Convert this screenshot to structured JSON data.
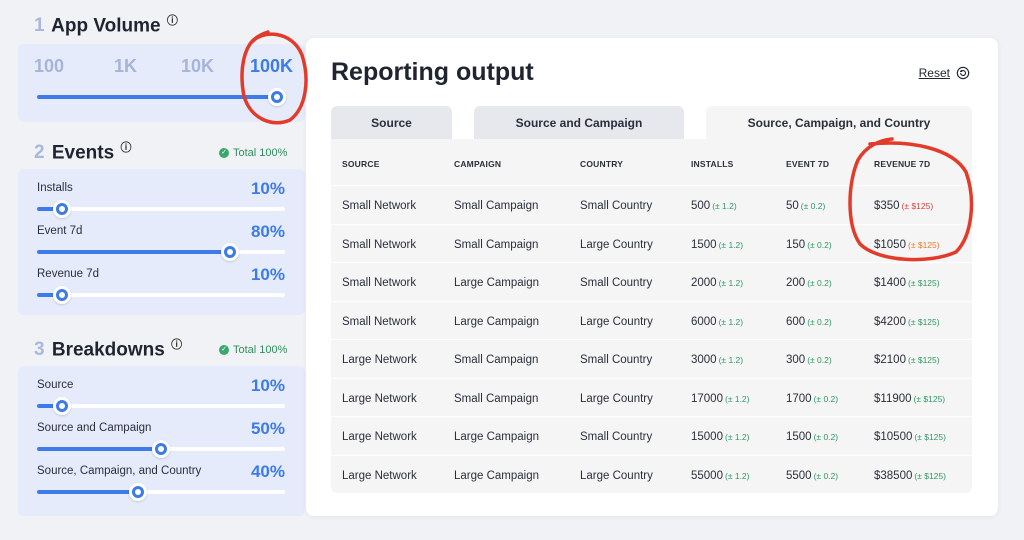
{
  "app_volume": {
    "number": "1",
    "title": "App Volume",
    "info": "ⓘ",
    "options": [
      "100",
      "1K",
      "10K",
      "100K"
    ],
    "selected": "100K"
  },
  "events": {
    "number": "2",
    "title": "Events",
    "info": "ⓘ",
    "total": "Total 100%",
    "rows": [
      {
        "label": "Installs",
        "pct": "10%",
        "value": 0.1
      },
      {
        "label": "Event 7d",
        "pct": "80%",
        "value": 0.8
      },
      {
        "label": "Revenue 7d",
        "pct": "10%",
        "value": 0.1
      }
    ]
  },
  "breakdowns": {
    "number": "3",
    "title": "Breakdowns",
    "info": "ⓘ",
    "total": "Total 100%",
    "rows": [
      {
        "label": "Source",
        "pct": "10%",
        "value": 0.1
      },
      {
        "label": "Source and Campaign",
        "pct": "50%",
        "value": 0.5
      },
      {
        "label": "Source, Campaign, and Country",
        "pct": "40%",
        "value": 0.4
      }
    ]
  },
  "reporting": {
    "title": "Reporting output",
    "reset_label": "Reset",
    "tabs": [
      "Source",
      "Source and Campaign",
      "Source, Campaign, and Country"
    ],
    "active_tab": "Source, Campaign, and Country",
    "columns": [
      "SOURCE",
      "CAMPAIGN",
      "COUNTRY",
      "INSTALLS",
      "EVENT 7D",
      "REVENUE 7D"
    ],
    "rows": [
      {
        "source": "Small Network",
        "campaign": "Small Campaign",
        "country": "Small Country",
        "installs": "500",
        "installs_err": "(± 1.2)",
        "event": "50",
        "event_err": "(± 0.2)",
        "revenue": "$350",
        "revenue_err": "(± $125)",
        "revenue_err_color": "red"
      },
      {
        "source": "Small Network",
        "campaign": "Small Campaign",
        "country": "Large Country",
        "installs": "1500",
        "installs_err": "(± 1.2)",
        "event": "150",
        "event_err": "(± 0.2)",
        "revenue": "$1050",
        "revenue_err": "(± $125)",
        "revenue_err_color": "orange"
      },
      {
        "source": "Small Network",
        "campaign": "Large Campaign",
        "country": "Small Country",
        "installs": "2000",
        "installs_err": "(± 1.2)",
        "event": "200",
        "event_err": "(± 0.2)",
        "revenue": "$1400",
        "revenue_err": "(± $125)",
        "revenue_err_color": "green"
      },
      {
        "source": "Small Network",
        "campaign": "Large Campaign",
        "country": "Large Country",
        "installs": "6000",
        "installs_err": "(± 1.2)",
        "event": "600",
        "event_err": "(± 0.2)",
        "revenue": "$4200",
        "revenue_err": "(± $125)",
        "revenue_err_color": "green"
      },
      {
        "source": "Large Network",
        "campaign": "Small Campaign",
        "country": "Small Country",
        "installs": "3000",
        "installs_err": "(± 1.2)",
        "event": "300",
        "event_err": "(± 0.2)",
        "revenue": "$2100",
        "revenue_err": "(± $125)",
        "revenue_err_color": "green"
      },
      {
        "source": "Large Network",
        "campaign": "Small Campaign",
        "country": "Large Country",
        "installs": "17000",
        "installs_err": "(± 1.2)",
        "event": "1700",
        "event_err": "(± 0.2)",
        "revenue": "$11900",
        "revenue_err": "(± $125)",
        "revenue_err_color": "green"
      },
      {
        "source": "Large Network",
        "campaign": "Large Campaign",
        "country": "Small Country",
        "installs": "15000",
        "installs_err": "(± 1.2)",
        "event": "1500",
        "event_err": "(± 0.2)",
        "revenue": "$10500",
        "revenue_err": "(± $125)",
        "revenue_err_color": "green"
      },
      {
        "source": "Large Network",
        "campaign": "Large Campaign",
        "country": "Large Country",
        "installs": "55000",
        "installs_err": "(± 1.2)",
        "event": "5500",
        "event_err": "(± 0.2)",
        "revenue": "$38500",
        "revenue_err": "(± $125)",
        "revenue_err_color": "green"
      }
    ]
  },
  "colors": {
    "accent": "#3c7be8",
    "card_bg": "#e5ebfa",
    "annotation": "#e23b2a",
    "err_green": "#2f9a63",
    "err_red": "#e0413a",
    "err_orange": "#ea7a2e"
  },
  "icons": {
    "info": "info-icon",
    "check": "check-circle-icon",
    "reset": "reset-icon"
  }
}
